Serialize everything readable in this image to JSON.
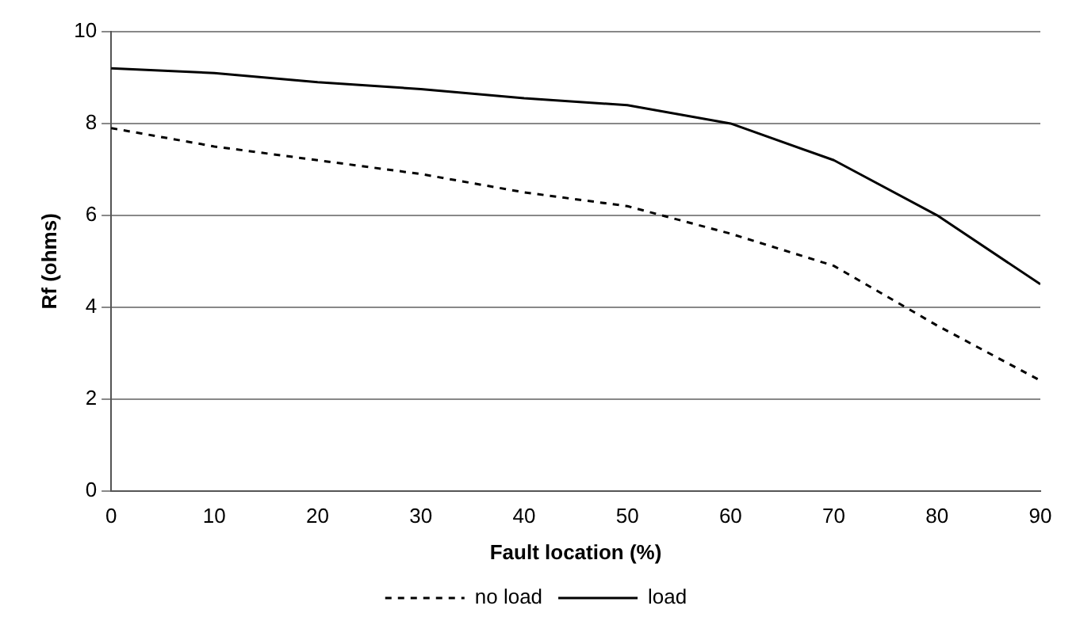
{
  "chart_data": {
    "type": "line",
    "xlabel": "Fault location (%)",
    "ylabel": "Rf (ohms)",
    "x": [
      0,
      10,
      20,
      30,
      40,
      50,
      60,
      70,
      80,
      90
    ],
    "xlim": [
      0,
      90
    ],
    "xticks": [
      0,
      10,
      20,
      30,
      40,
      50,
      60,
      70,
      80,
      90
    ],
    "ylim": [
      0,
      10
    ],
    "yticks": [
      0,
      2,
      4,
      6,
      8,
      10
    ],
    "grid": "y",
    "legend": "bottom",
    "marker": "none",
    "series": [
      {
        "name": "no load",
        "color": "#000000",
        "line_style": "dashed",
        "values": [
          7.9,
          7.5,
          7.2,
          6.9,
          6.5,
          6.2,
          5.6,
          4.9,
          3.6,
          2.4
        ]
      },
      {
        "name": "load",
        "color": "#000000",
        "line_style": "solid",
        "values": [
          9.2,
          9.1,
          8.9,
          8.75,
          8.55,
          8.4,
          8.0,
          7.2,
          6.0,
          4.5
        ]
      }
    ]
  }
}
